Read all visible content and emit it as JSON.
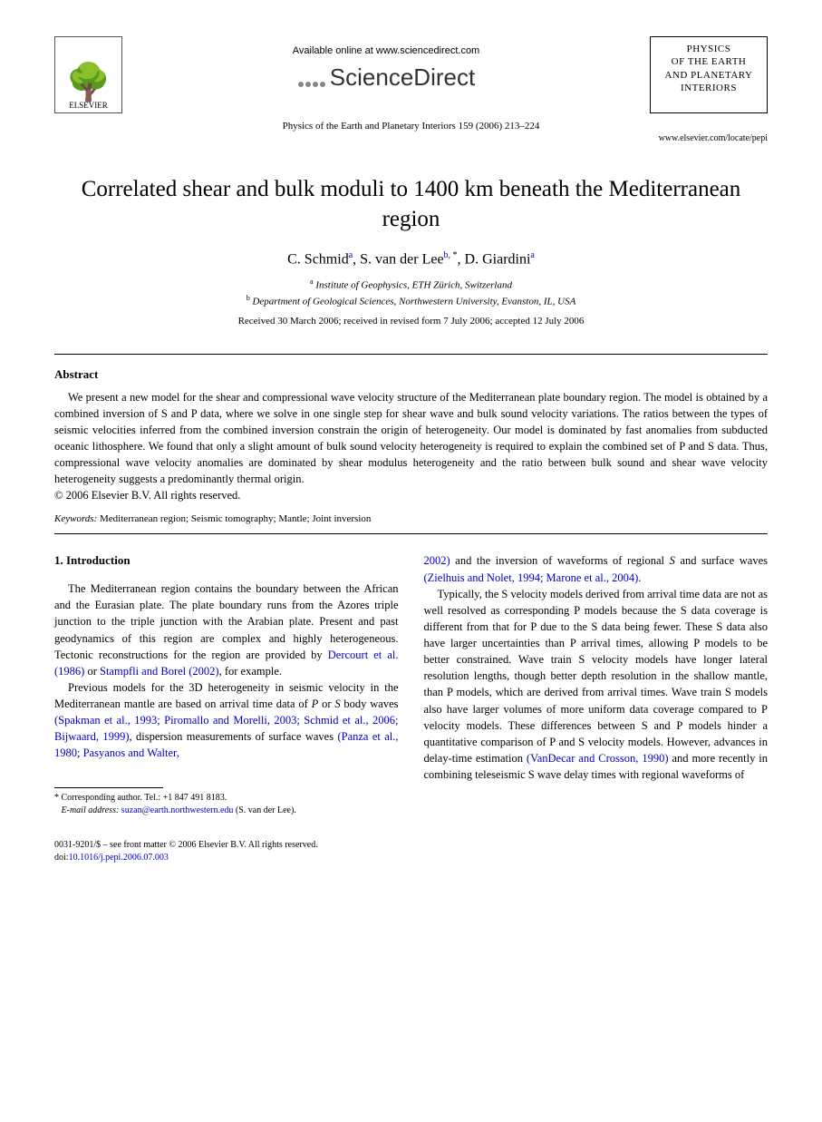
{
  "header": {
    "elsevier_label": "ELSEVIER",
    "available_online": "Available online at www.sciencedirect.com",
    "sciencedirect": "ScienceDirect",
    "journal_name_lines": [
      "PHYSICS",
      "OF THE EARTH",
      "AND PLANETARY",
      "INTERIORS"
    ],
    "citation": "Physics of the Earth and Planetary Interiors 159 (2006) 213–224",
    "journal_url": "www.elsevier.com/locate/pepi"
  },
  "title": "Correlated shear and bulk moduli to 1400 km beneath the Mediterranean region",
  "authors": [
    {
      "name": "C. Schmid",
      "sup": "a"
    },
    {
      "name": "S. van der Lee",
      "sup": "b,",
      "star": true
    },
    {
      "name": "D. Giardini",
      "sup": "a"
    }
  ],
  "affiliations": [
    {
      "sup": "a",
      "text": "Institute of Geophysics, ETH Zürich, Switzerland"
    },
    {
      "sup": "b",
      "text": "Department of Geological Sciences, Northwestern University, Evanston, IL, USA"
    }
  ],
  "dates": "Received 30 March 2006; received in revised form 7 July 2006; accepted 12 July 2006",
  "abstract": {
    "heading": "Abstract",
    "text": "We present a new model for the shear and compressional wave velocity structure of the Mediterranean plate boundary region. The model is obtained by a combined inversion of S and P data, where we solve in one single step for shear wave and bulk sound velocity variations. The ratios between the types of seismic velocities inferred from the combined inversion constrain the origin of heterogeneity. Our model is dominated by fast anomalies from subducted oceanic lithosphere. We found that only a slight amount of bulk sound velocity heterogeneity is required to explain the combined set of P and S data. Thus, compressional wave velocity anomalies are dominated by shear modulus heterogeneity and the ratio between bulk sound and shear wave velocity heterogeneity suggests a predominantly thermal origin.",
    "copyright": "© 2006 Elsevier B.V. All rights reserved."
  },
  "keywords": {
    "label": "Keywords:",
    "text": "Mediterranean region; Seismic tomography; Mantle; Joint inversion"
  },
  "body": {
    "section_heading": "1. Introduction",
    "col1_p1_pre": "The Mediterranean region contains the boundary between the African and the Eurasian plate. The plate boundary runs from the Azores triple junction to the triple junction with the Arabian plate. Present and past geodynamics of this region are complex and highly heterogeneous. Tectonic reconstructions for the region are provided by ",
    "col1_p1_ref1": "Dercourt et al. (1986)",
    "col1_p1_mid": " or ",
    "col1_p1_ref2": "Stampfli and Borel (2002)",
    "col1_p1_post": ", for example.",
    "col1_p2_pre": "Previous models for the 3D heterogeneity in seismic velocity in the Mediterranean mantle are based on arrival time data of ",
    "col1_p2_ital1": "P",
    "col1_p2_mid1": " or ",
    "col1_p2_ital2": "S",
    "col1_p2_mid2": " body waves ",
    "col1_p2_ref1": "(Spakman et al., 1993; Piromallo and Morelli, 2003; Schmid et al., 2006; Bijwaard, 1999)",
    "col1_p2_mid3": ", dispersion measurements of surface waves ",
    "col1_p2_ref2": "(Panza et al., 1980; Pasyanos and Walter,",
    "col2_p1_ref1": "2002)",
    "col2_p1_mid1": " and the inversion of waveforms of regional ",
    "col2_p1_ital1": "S",
    "col2_p1_mid2": " and surface waves ",
    "col2_p1_ref2": "(Zielhuis and Nolet, 1994; Marone et al., 2004)",
    "col2_p1_post": ".",
    "col2_p2": "Typically, the S velocity models derived from arrival time data are not as well resolved as corresponding P models because the S data coverage is different from that for P due to the S data being fewer. These S data also have larger uncertainties than P arrival times, allowing P models to be better constrained. Wave train S velocity models have longer lateral resolution lengths, though better depth resolution in the shallow mantle, than P models, which are derived from arrival times. Wave train S models also have larger volumes of more uniform data coverage compared to P velocity models. These differences between S and P models hinder a quantitative comparison of P and S velocity models. However, advances in delay-time estimation ",
    "col2_p2_ref": "(VanDecar and Crosson, 1990)",
    "col2_p2_post": " and more recently in combining teleseismic S wave delay times with regional waveforms of"
  },
  "footnote": {
    "corr": "Corresponding author. Tel.: +1 847 491 8183.",
    "email_label": "E-mail address:",
    "email": "suzan@earth.northwestern.edu",
    "email_post": "(S. van der Lee)."
  },
  "footer": {
    "line1": "0031-9201/$ – see front matter © 2006 Elsevier B.V. All rights reserved.",
    "doi_label": "doi:",
    "doi": "10.1016/j.pepi.2006.07.003"
  }
}
